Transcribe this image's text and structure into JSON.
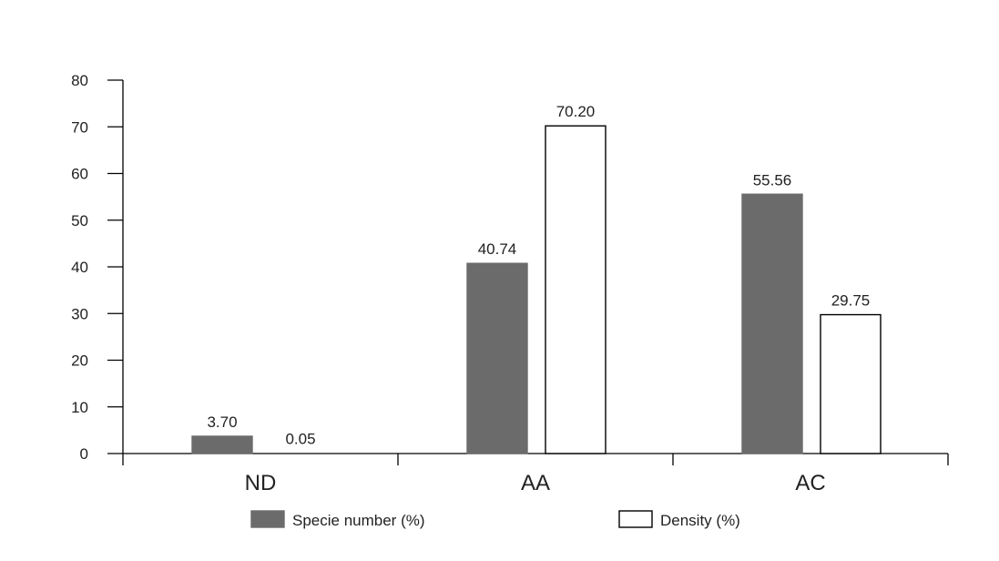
{
  "chart_data": {
    "type": "bar",
    "categories": [
      "ND",
      "AA",
      "AC"
    ],
    "series": [
      {
        "name": "Specie number (%)",
        "values": [
          3.7,
          40.74,
          55.56
        ],
        "labels": [
          "3.70",
          "40.74",
          "55.56"
        ],
        "color": "#6b6b6b"
      },
      {
        "name": "Density (%)",
        "values": [
          0.05,
          70.2,
          29.75
        ],
        "labels": [
          "0.05",
          "70.20",
          "29.75"
        ],
        "color": "#ffffff"
      }
    ],
    "yticks": [
      "0",
      "10",
      "20",
      "30",
      "40",
      "50",
      "60",
      "70",
      "80"
    ],
    "ylim": [
      0,
      80
    ],
    "title": "",
    "xlabel": "",
    "ylabel": "",
    "legend_position": "bottom",
    "grid": false
  }
}
